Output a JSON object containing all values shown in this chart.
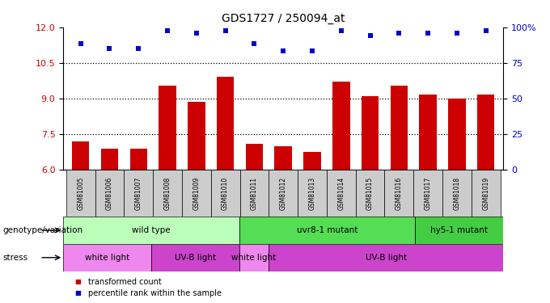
{
  "title": "GDS1727 / 250094_at",
  "samples": [
    "GSM81005",
    "GSM81006",
    "GSM81007",
    "GSM81008",
    "GSM81009",
    "GSM81010",
    "GSM81011",
    "GSM81012",
    "GSM81013",
    "GSM81014",
    "GSM81015",
    "GSM81016",
    "GSM81017",
    "GSM81018",
    "GSM81019"
  ],
  "bar_values": [
    7.2,
    6.9,
    6.9,
    9.55,
    8.85,
    9.9,
    7.1,
    7.0,
    6.75,
    9.7,
    9.1,
    9.55,
    9.15,
    9.0,
    9.15
  ],
  "dot_values": [
    11.3,
    11.1,
    11.1,
    11.85,
    11.75,
    11.85,
    11.3,
    11.0,
    11.0,
    11.85,
    11.65,
    11.75,
    11.75,
    11.75,
    11.85
  ],
  "bar_color": "#cc0000",
  "dot_color": "#0000cc",
  "ylim_left": [
    6,
    12
  ],
  "ylim_right": [
    0,
    100
  ],
  "yticks_left": [
    6,
    7.5,
    9,
    10.5,
    12
  ],
  "yticks_right": [
    0,
    25,
    50,
    75,
    100
  ],
  "ytick_labels_right": [
    "0",
    "25",
    "50",
    "75",
    "100%"
  ],
  "hlines": [
    7.5,
    9.0,
    10.5
  ],
  "genotype_groups": [
    {
      "label": "wild type",
      "start": 0,
      "end": 6,
      "color": "#bbffbb"
    },
    {
      "label": "uvr8-1 mutant",
      "start": 6,
      "end": 12,
      "color": "#55dd55"
    },
    {
      "label": "hy5-1 mutant",
      "start": 12,
      "end": 15,
      "color": "#44cc44"
    }
  ],
  "stress_groups": [
    {
      "label": "white light",
      "start": 0,
      "end": 3,
      "color": "#ee88ee"
    },
    {
      "label": "UV-B light",
      "start": 3,
      "end": 6,
      "color": "#cc44cc"
    },
    {
      "label": "white light",
      "start": 6,
      "end": 7,
      "color": "#ee88ee"
    },
    {
      "label": "UV-B light",
      "start": 7,
      "end": 15,
      "color": "#cc44cc"
    }
  ],
  "legend_items": [
    {
      "label": "transformed count",
      "color": "#cc0000",
      "marker": "s"
    },
    {
      "label": "percentile rank within the sample",
      "color": "#0000cc",
      "marker": "s"
    }
  ],
  "label_genotype": "genotype/variation",
  "label_stress": "stress",
  "bar_width": 0.6,
  "fig_width": 6.8,
  "fig_height": 3.75,
  "background_color": "#ffffff",
  "group_separators": [
    3,
    6,
    7,
    12
  ]
}
